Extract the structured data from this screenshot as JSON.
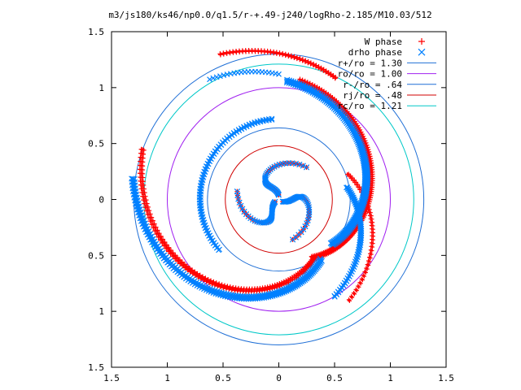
{
  "chart_data": {
    "type": "scatter",
    "title": "m3/js180/ks46/np0.0/q1.5/r-+.49-j240/logRho-2.185/M10.03/512",
    "xlabel": "",
    "ylabel": "",
    "xlim": [
      -1.5,
      1.5
    ],
    "ylim": [
      -1.5,
      1.5
    ],
    "x_ticks": [
      -1.5,
      -1,
      -0.5,
      0,
      0.5,
      1,
      1.5
    ],
    "y_ticks": [
      -1.5,
      -1,
      -0.5,
      0,
      0.5,
      1,
      1.5
    ],
    "x_tick_labels": [
      "1.5",
      "1",
      "0.5",
      "0",
      "0.5",
      "1",
      "1.5"
    ],
    "y_tick_labels": [
      "1.5",
      "1",
      "0.5",
      "0",
      "0.5",
      "1",
      "1.5"
    ],
    "grid": false,
    "legend_position": "top-right",
    "series": [
      {
        "name": "W phase",
        "kind": "points",
        "marker": "plus",
        "color": "#ff0000"
      },
      {
        "name": "drho phase",
        "kind": "points",
        "marker": "cross",
        "color": "#0080ff"
      },
      {
        "name": "r+/ro = 1.30",
        "kind": "circle",
        "radius": 1.3,
        "color": "#1f6fd6"
      },
      {
        "name": "ro/ro = 1.00",
        "kind": "circle",
        "radius": 1.0,
        "color": "#a020f0"
      },
      {
        "name": "r-/ro = .64",
        "kind": "circle",
        "radius": 0.64,
        "color": "#1f6fd6"
      },
      {
        "name": "rj/ro = .48",
        "kind": "circle",
        "radius": 0.48,
        "color": "#d00000"
      },
      {
        "name": "rc/ro = 1.21",
        "kind": "circle",
        "radius": 1.21,
        "color": "#00c8c8"
      }
    ]
  }
}
